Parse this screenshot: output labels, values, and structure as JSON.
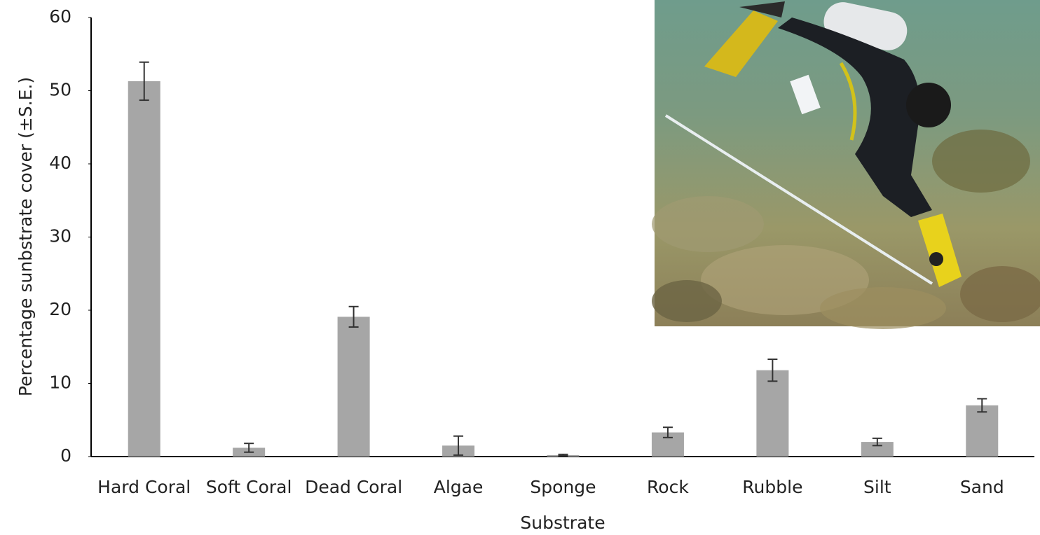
{
  "chart_data": {
    "type": "bar",
    "y_label": "Percentage sunbstrate cover (±S.E.)",
    "x_label": "Substrate",
    "categories": [
      "Hard Coral",
      "Soft Coral",
      "Dead Coral",
      "Algae",
      "Sponge",
      "Rock",
      "Rubble",
      "Silt",
      "Sand"
    ],
    "values": [
      51.3,
      1.2,
      19.1,
      1.5,
      0.2,
      3.3,
      11.8,
      2.0,
      7.0
    ],
    "errors": [
      2.6,
      0.6,
      1.4,
      1.3,
      0.1,
      0.7,
      1.5,
      0.5,
      0.9
    ],
    "color": "#a6a6a6",
    "ylim": [
      0,
      60
    ],
    "yticks": [
      0,
      10,
      20,
      30,
      40,
      50,
      60
    ],
    "grid": false
  }
}
